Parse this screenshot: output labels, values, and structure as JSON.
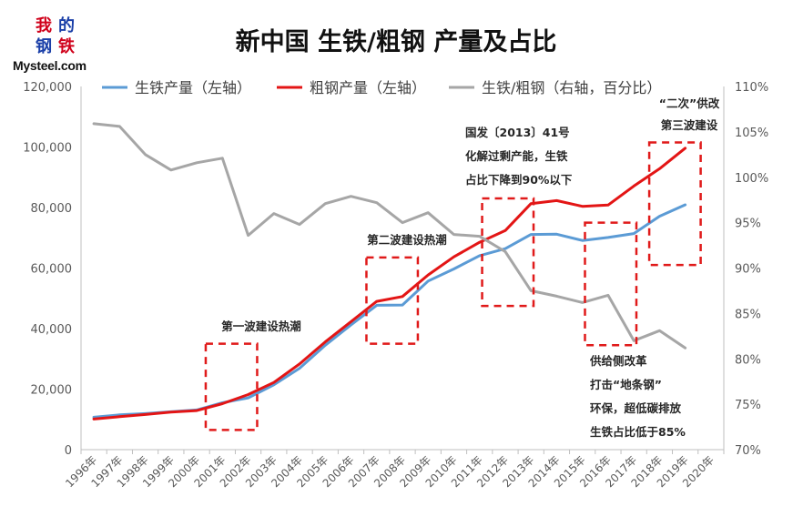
{
  "logo": {
    "chars": [
      "我",
      "的",
      "钢",
      "铁"
    ],
    "text": "Mysteel.com"
  },
  "chart_data": {
    "type": "line",
    "title": "新中国 生铁/粗钢 产量及占比",
    "categories": [
      "1996年",
      "1997年",
      "1998年",
      "1999年",
      "2000年",
      "2001年",
      "2002年",
      "2003年",
      "2004年",
      "2005年",
      "2006年",
      "2007年",
      "2008年",
      "2009年",
      "2010年",
      "2011年",
      "2012年",
      "2013年",
      "2014年",
      "2015年",
      "2016年",
      "2017年",
      "2018年",
      "2019年",
      "2020年"
    ],
    "y_left": {
      "ylim": [
        0,
        120000
      ],
      "ticks": [
        0,
        20000,
        40000,
        60000,
        80000,
        100000,
        120000
      ],
      "tick_labels": [
        "0",
        "20,000",
        "40,000",
        "60,000",
        "80,000",
        "100,000",
        "120,000"
      ]
    },
    "y_right": {
      "ylim": [
        70,
        110
      ],
      "ticks": [
        70,
        75,
        80,
        85,
        90,
        95,
        100,
        105,
        110
      ],
      "tick_labels": [
        "70%",
        "75%",
        "80%",
        "85%",
        "90%",
        "95%",
        "100%",
        "105%",
        "110%"
      ]
    },
    "legend_position": "top",
    "series": [
      {
        "name": "生铁产量（左轴）",
        "axis": "left",
        "color": "#5b9bd5",
        "width": 3,
        "values": [
          10700,
          11500,
          11900,
          12500,
          13100,
          15500,
          17100,
          21400,
          26900,
          34500,
          41200,
          47700,
          47800,
          55700,
          59700,
          64100,
          66400,
          71100,
          71200,
          69100,
          70100,
          71400,
          77100,
          80900,
          null
        ]
      },
      {
        "name": "粗钢产量（左轴）",
        "axis": "left",
        "color": "#e31515",
        "width": 3,
        "values": [
          10100,
          10900,
          11600,
          12400,
          12900,
          15200,
          18200,
          22200,
          28300,
          35600,
          42300,
          49000,
          50600,
          57700,
          63700,
          68500,
          72400,
          81300,
          82300,
          80400,
          80800,
          87100,
          92800,
          99600,
          null
        ]
      },
      {
        "name": "生铁/粗钢（右轴，百分比）",
        "axis": "right",
        "color": "#a6a6a6",
        "width": 3,
        "values": [
          105.9,
          105.6,
          102.5,
          100.8,
          101.6,
          102.1,
          93.6,
          96.0,
          94.8,
          97.1,
          97.9,
          97.2,
          95.0,
          96.1,
          93.7,
          93.5,
          91.8,
          87.5,
          86.9,
          86.2,
          87.0,
          82.0,
          83.1,
          81.2,
          null
        ]
      }
    ],
    "annotations": [
      {
        "lines": [
          "第一波建设热潮"
        ],
        "box_from": 4.85,
        "box_to": 6.85,
        "box_top": 35000,
        "box_bottom": 6500
      },
      {
        "lines": [
          "第二波建设热潮"
        ],
        "box_from": 11.1,
        "box_to": 13.1,
        "box_top": 63500,
        "box_bottom": 35000
      },
      {
        "lines": [
          "国发〔2013〕41号",
          "化解过剩产能，生铁",
          "占比下降到90%以下"
        ],
        "box_from": 15.6,
        "box_to": 17.6,
        "box_top": 83000,
        "box_bottom": 47500
      },
      {
        "lines": [
          "供给侧改革",
          "打击“地条钢”",
          "环保，超低碳排放",
          "生铁占比低于85%"
        ],
        "box_from": 19.6,
        "box_to": 21.6,
        "box_top": 75000,
        "box_bottom": 34500
      },
      {
        "lines": [
          "“二次”供改",
          "第三波建设"
        ],
        "box_from": 22.1,
        "box_to": 24.1,
        "box_top": 101500,
        "box_bottom": 61000
      }
    ]
  }
}
